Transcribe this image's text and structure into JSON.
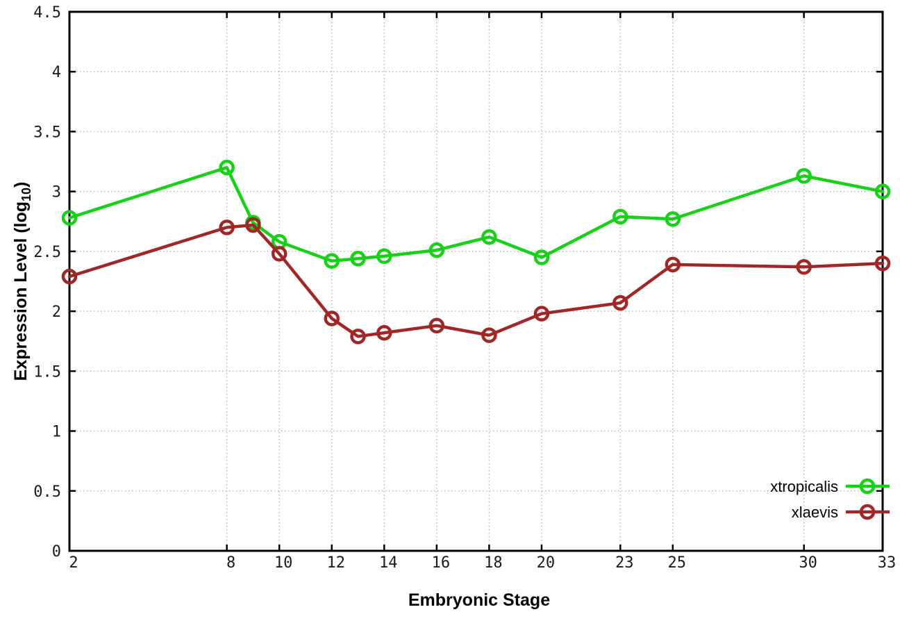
{
  "chart_data": {
    "type": "line",
    "title": "",
    "xlabel": "Embryonic Stage",
    "ylabel": {
      "prefix": "Expression Level (log",
      "sub": "10",
      "suffix": ")"
    },
    "x": [
      2,
      8,
      9,
      10,
      12,
      13,
      14,
      16,
      18,
      20,
      23,
      25,
      30,
      33
    ],
    "xticks": [
      2,
      8,
      10,
      12,
      14,
      16,
      18,
      20,
      23,
      25,
      30,
      33
    ],
    "yticks": [
      0,
      0.5,
      1,
      1.5,
      2,
      2.5,
      3,
      3.5,
      4,
      4.5
    ],
    "xlim": [
      2,
      33
    ],
    "ylim": [
      0,
      4.5
    ],
    "grid": true,
    "legend_position": "bottom-right",
    "series": [
      {
        "name": "xtropicalis",
        "color": "#17d117",
        "marker": "open-circle",
        "values": [
          2.78,
          3.2,
          2.74,
          2.58,
          2.42,
          2.44,
          2.46,
          2.51,
          2.62,
          2.45,
          2.79,
          2.77,
          3.13,
          3.0
        ]
      },
      {
        "name": "xlaevis",
        "color": "#a12727",
        "marker": "open-circle",
        "values": [
          2.29,
          2.7,
          2.72,
          2.48,
          1.94,
          1.79,
          1.82,
          1.88,
          1.8,
          1.98,
          2.07,
          2.39,
          2.37,
          2.4
        ]
      }
    ],
    "colors": {
      "grid": "#b8b8b8",
      "axis": "#000000",
      "tick_label": "#1a1a1a",
      "background": "#ffffff"
    }
  }
}
